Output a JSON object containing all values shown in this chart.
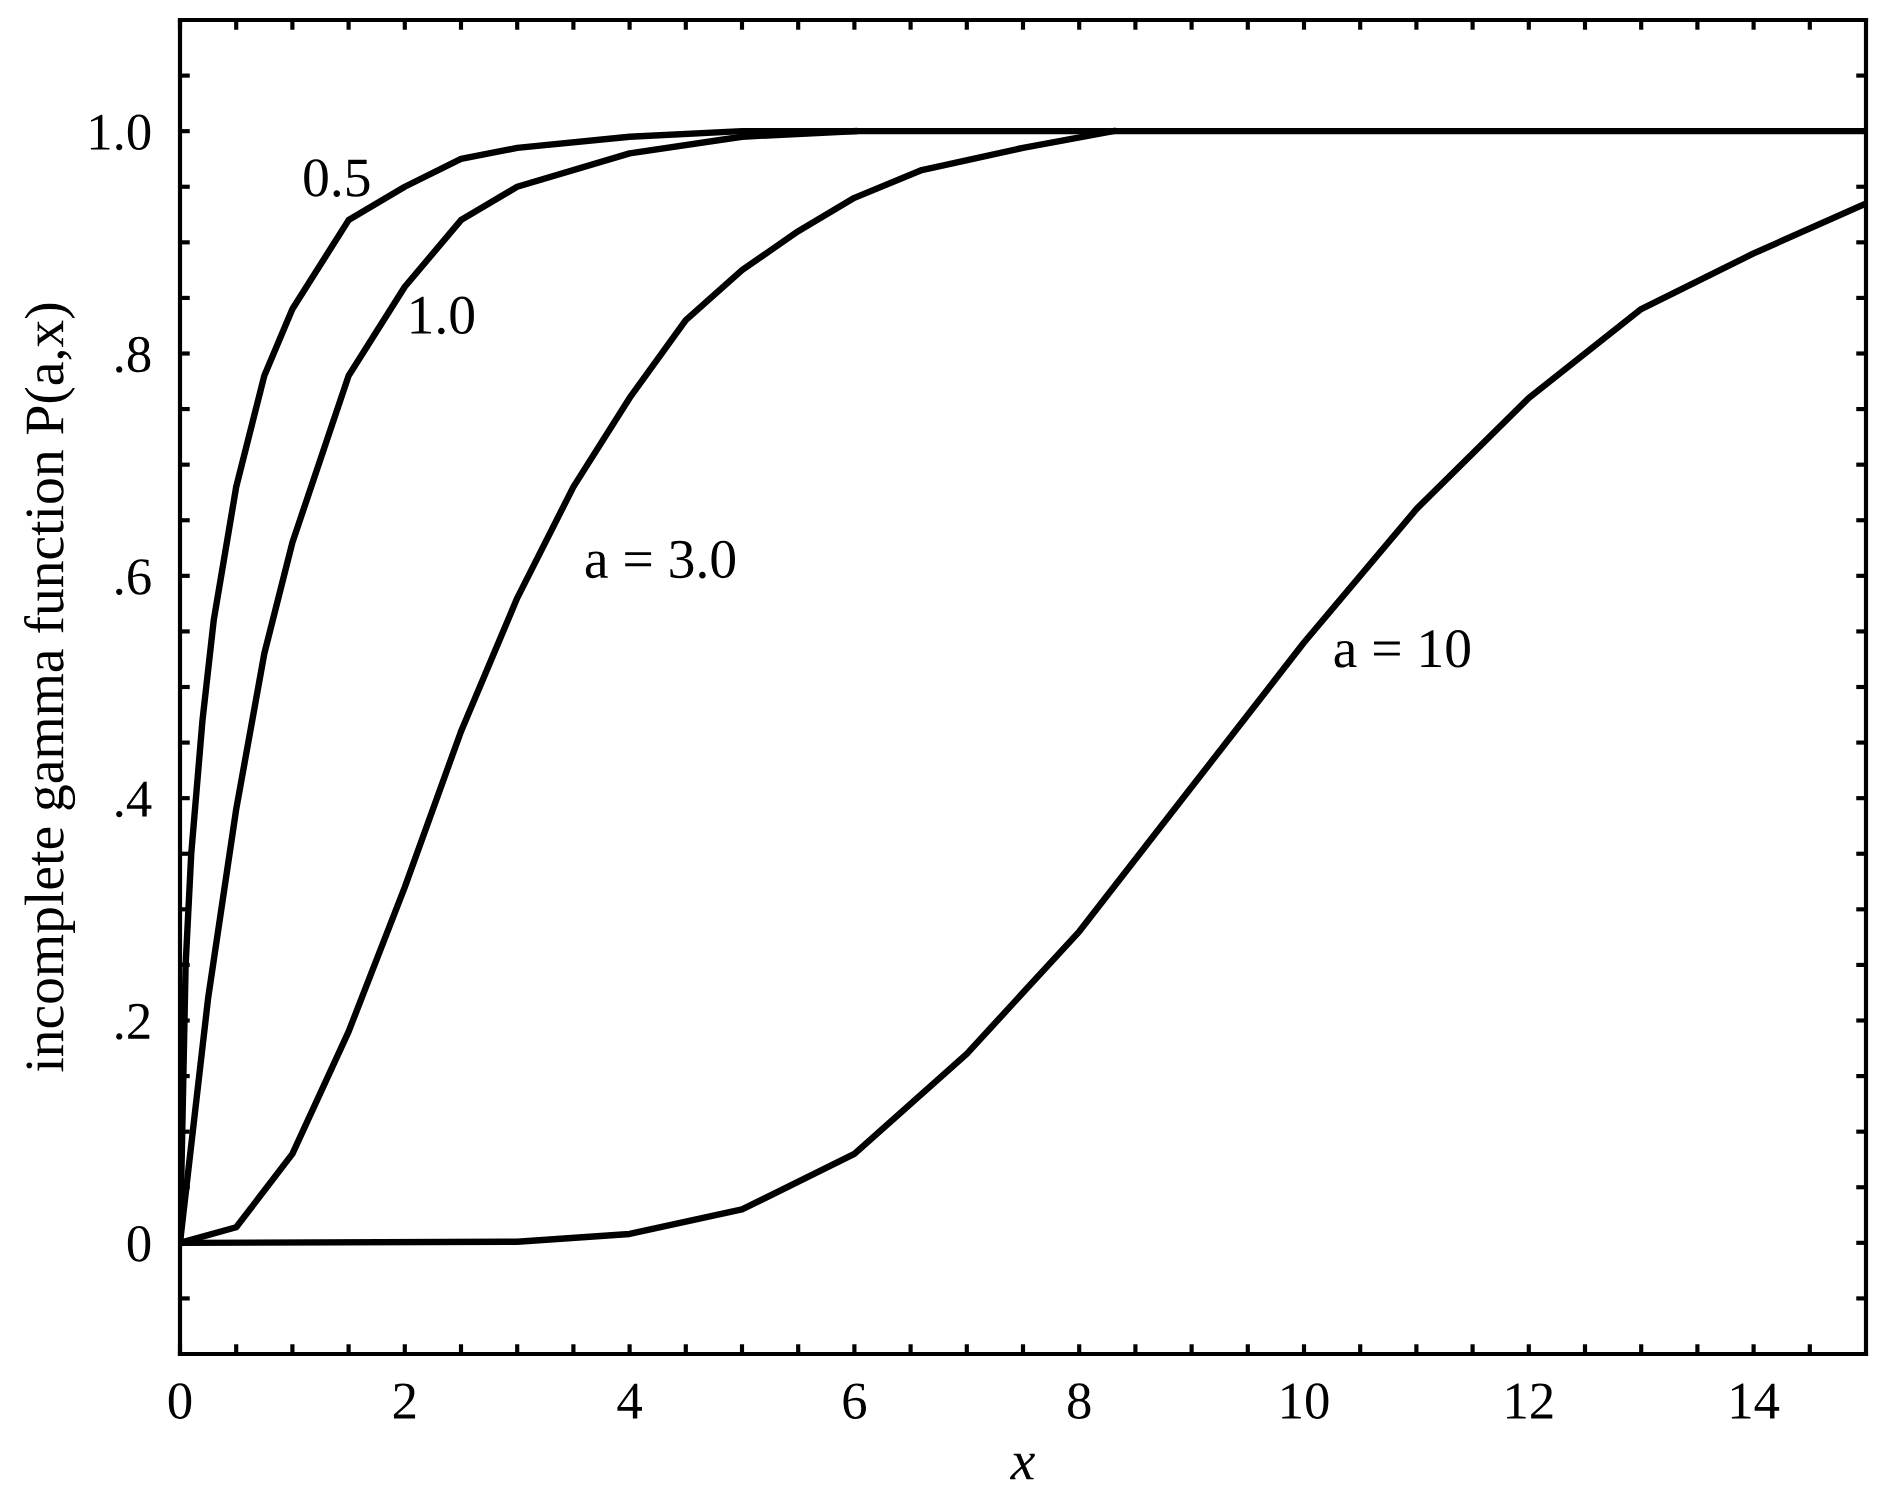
{
  "chart_data": {
    "type": "line",
    "xlabel": "x",
    "ylabel": "incomplete gamma function P(a,x)",
    "xlim": [
      0,
      15
    ],
    "ylim": [
      -0.1,
      1.1
    ],
    "xticks": [
      0,
      {
        "value": 0.5,
        "label": null
      },
      {
        "value": 1,
        "label": null
      },
      {
        "value": 1.5,
        "label": null
      },
      2,
      {
        "value": 2.5,
        "label": null
      },
      {
        "value": 3,
        "label": null
      },
      {
        "value": 3.5,
        "label": null
      },
      4,
      {
        "value": 4.5,
        "label": null
      },
      {
        "value": 5,
        "label": null
      },
      {
        "value": 5.5,
        "label": null
      },
      6,
      {
        "value": 6.5,
        "label": null
      },
      {
        "value": 7,
        "label": null
      },
      {
        "value": 7.5,
        "label": null
      },
      8,
      {
        "value": 8.5,
        "label": null
      },
      {
        "value": 9,
        "label": null
      },
      {
        "value": 9.5,
        "label": null
      },
      10,
      {
        "value": 10.5,
        "label": null
      },
      {
        "value": 11,
        "label": null
      },
      {
        "value": 11.5,
        "label": null
      },
      12,
      {
        "value": 12.5,
        "label": null
      },
      {
        "value": 13,
        "label": null
      },
      {
        "value": 13.5,
        "label": null
      },
      14,
      {
        "value": 14.5,
        "label": null
      }
    ],
    "yticks": [
      {
        "value": -0.05,
        "label": null
      },
      0,
      {
        "value": 0.05,
        "label": null
      },
      {
        "value": 0.1,
        "label": null
      },
      {
        "value": 0.15,
        "label": null
      },
      {
        "value": 0.2,
        "label": ".2"
      },
      {
        "value": 0.25,
        "label": null
      },
      {
        "value": 0.3,
        "label": null
      },
      {
        "value": 0.35,
        "label": null
      },
      {
        "value": 0.4,
        "label": ".4"
      },
      {
        "value": 0.45,
        "label": null
      },
      {
        "value": 0.5,
        "label": null
      },
      {
        "value": 0.55,
        "label": null
      },
      {
        "value": 0.6,
        "label": ".6"
      },
      {
        "value": 0.65,
        "label": null
      },
      {
        "value": 0.7,
        "label": null
      },
      {
        "value": 0.75,
        "label": null
      },
      {
        "value": 0.8,
        "label": ".8"
      },
      {
        "value": 0.85,
        "label": null
      },
      {
        "value": 0.9,
        "label": null
      },
      {
        "value": 0.95,
        "label": null
      },
      {
        "value": 1.0,
        "label": "1.0"
      },
      {
        "value": 1.05,
        "label": null
      }
    ],
    "grid": false,
    "legend": false,
    "marker": "none",
    "line_style": "solid",
    "series": [
      {
        "name": "0.5",
        "color": "#000000",
        "x": [
          0,
          0.05,
          0.1,
          0.2,
          0.3,
          0.5,
          0.75,
          1,
          1.5,
          2,
          2.5,
          3,
          4,
          5,
          15
        ],
        "values": [
          0,
          0.25,
          0.35,
          0.47,
          0.56,
          0.68,
          0.78,
          0.84,
          0.92,
          0.95,
          0.975,
          0.985,
          0.995,
          1.0,
          1.0
        ]
      },
      {
        "name": "1.0",
        "color": "#000000",
        "x": [
          0,
          0.25,
          0.5,
          0.75,
          1,
          1.5,
          2,
          2.5,
          3,
          4,
          5,
          6
        ],
        "values": [
          0,
          0.22,
          0.39,
          0.53,
          0.63,
          0.78,
          0.86,
          0.92,
          0.95,
          0.98,
          0.995,
          1.0
        ]
      },
      {
        "name": "a = 3.0",
        "color": "#000000",
        "x": [
          0,
          0.5,
          1,
          1.5,
          2,
          2.5,
          3,
          3.5,
          4,
          4.5,
          5,
          5.5,
          6,
          6.6,
          7.5,
          8.3
        ],
        "values": [
          0,
          0.014,
          0.08,
          0.19,
          0.32,
          0.46,
          0.58,
          0.68,
          0.76,
          0.83,
          0.875,
          0.91,
          0.94,
          0.965,
          0.985,
          1.0
        ]
      },
      {
        "name": "a = 10",
        "color": "#000000",
        "x": [
          0,
          3,
          4,
          5,
          6,
          7,
          8,
          9,
          10,
          11,
          12,
          13,
          14,
          15
        ],
        "values": [
          0,
          0.001,
          0.008,
          0.03,
          0.08,
          0.17,
          0.28,
          0.41,
          0.54,
          0.66,
          0.76,
          0.84,
          0.89,
          0.935
        ]
      }
    ]
  }
}
